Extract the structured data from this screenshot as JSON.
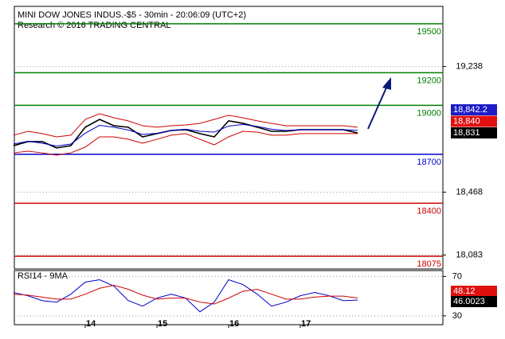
{
  "chart_data": [
    {
      "type": "line",
      "title": "MINI DOW JONES INDUS.-$5 - 30min - 20:06:09 (UTC+2)",
      "subtitle": "Research © 2016 TRADING CENTRAL",
      "series": [
        {
          "color": "#000000",
          "values": [
            18753,
            18778,
            18778,
            18739,
            18753,
            18866,
            18914,
            18875,
            18866,
            18807,
            18827,
            18846,
            18851,
            18827,
            18807,
            18905,
            18890,
            18866,
            18841,
            18841,
            18851,
            18851,
            18851,
            18851,
            18831
          ]
        },
        {
          "color": "#d00000",
          "values": [
            18817,
            18841,
            18827,
            18807,
            18817,
            18914,
            18949,
            18924,
            18905,
            18875,
            18866,
            18875,
            18880,
            18890,
            18914,
            18939,
            18924,
            18905,
            18890,
            18875,
            18875,
            18875,
            18875,
            18875,
            18866
          ]
        },
        {
          "color": "#d00000",
          "values": [
            18709,
            18719,
            18709,
            18695,
            18709,
            18744,
            18807,
            18807,
            18792,
            18768,
            18792,
            18817,
            18827,
            18792,
            18758,
            18807,
            18841,
            18836,
            18817,
            18817,
            18827,
            18827,
            18827,
            18827,
            18827
          ]
        },
        {
          "color": "#0000cc",
          "values": [
            18763,
            18780,
            18768,
            18751,
            18763,
            18829,
            18878,
            18866,
            18849,
            18822,
            18829,
            18846,
            18854,
            18841,
            18836,
            18873,
            18883,
            18871,
            18854,
            18846,
            18851,
            18851,
            18851,
            18851,
            18847
          ]
        }
      ],
      "ylim": [
        17997,
        19607
      ],
      "yticks": [
        {
          "value": 19238,
          "label": "19,238"
        },
        {
          "value": 18468,
          "label": "18,468"
        },
        {
          "value": 18083,
          "label": "18,083"
        }
      ],
      "grid": true,
      "levels": [
        {
          "value": 19500,
          "color": "#008000"
        },
        {
          "value": 19200,
          "color": "#008000"
        },
        {
          "value": 19000,
          "color": "#008000"
        },
        {
          "value": 18700,
          "color": "#0000cc"
        },
        {
          "value": 18400,
          "color": "#cc0000"
        },
        {
          "value": 18075,
          "color": "#cc0000"
        }
      ],
      "price_tags": [
        {
          "value": 18842.2,
          "label": "18,842.2",
          "color": "#1c1cc8"
        },
        {
          "value": 18840,
          "label": "18,840",
          "color": "#e01010"
        },
        {
          "value": 18831,
          "label": "18,831",
          "color": "#000000"
        }
      ]
    },
    {
      "type": "line",
      "title": "RSI14 - 9MA",
      "categories": [
        null,
        null,
        null,
        null,
        null,
        "14",
        null,
        null,
        null,
        null,
        "15",
        null,
        null,
        null,
        null,
        "16",
        null,
        null,
        null,
        null,
        "17",
        null,
        null,
        null,
        null
      ],
      "series": [
        {
          "color": "#0000cc",
          "values": [
            53.7,
            50.4,
            45.5,
            43.9,
            52.0,
            64.3,
            66.7,
            60.2,
            45.5,
            39.8,
            48.0,
            52.0,
            48.0,
            34.1,
            43.9,
            66.7,
            61.8,
            52.0,
            39.8,
            43.9,
            50.4,
            53.7,
            50.4,
            45.5,
            46.0023
          ]
        },
        {
          "color": "#d00000",
          "values": [
            52,
            51,
            49,
            47,
            47,
            52,
            58,
            61,
            57,
            51,
            47,
            48,
            48,
            44,
            42,
            48,
            55,
            57,
            52,
            47,
            47,
            49,
            50,
            50,
            48.12
          ]
        }
      ],
      "ylim": [
        21,
        76
      ],
      "yticks": [
        30,
        70
      ],
      "grid": true,
      "value_tags": [
        {
          "value": 48.12,
          "label": "48.12",
          "color": "#e01010"
        },
        {
          "value": 46.0023,
          "label": "46.0023",
          "color": "#000000"
        }
      ]
    }
  ]
}
